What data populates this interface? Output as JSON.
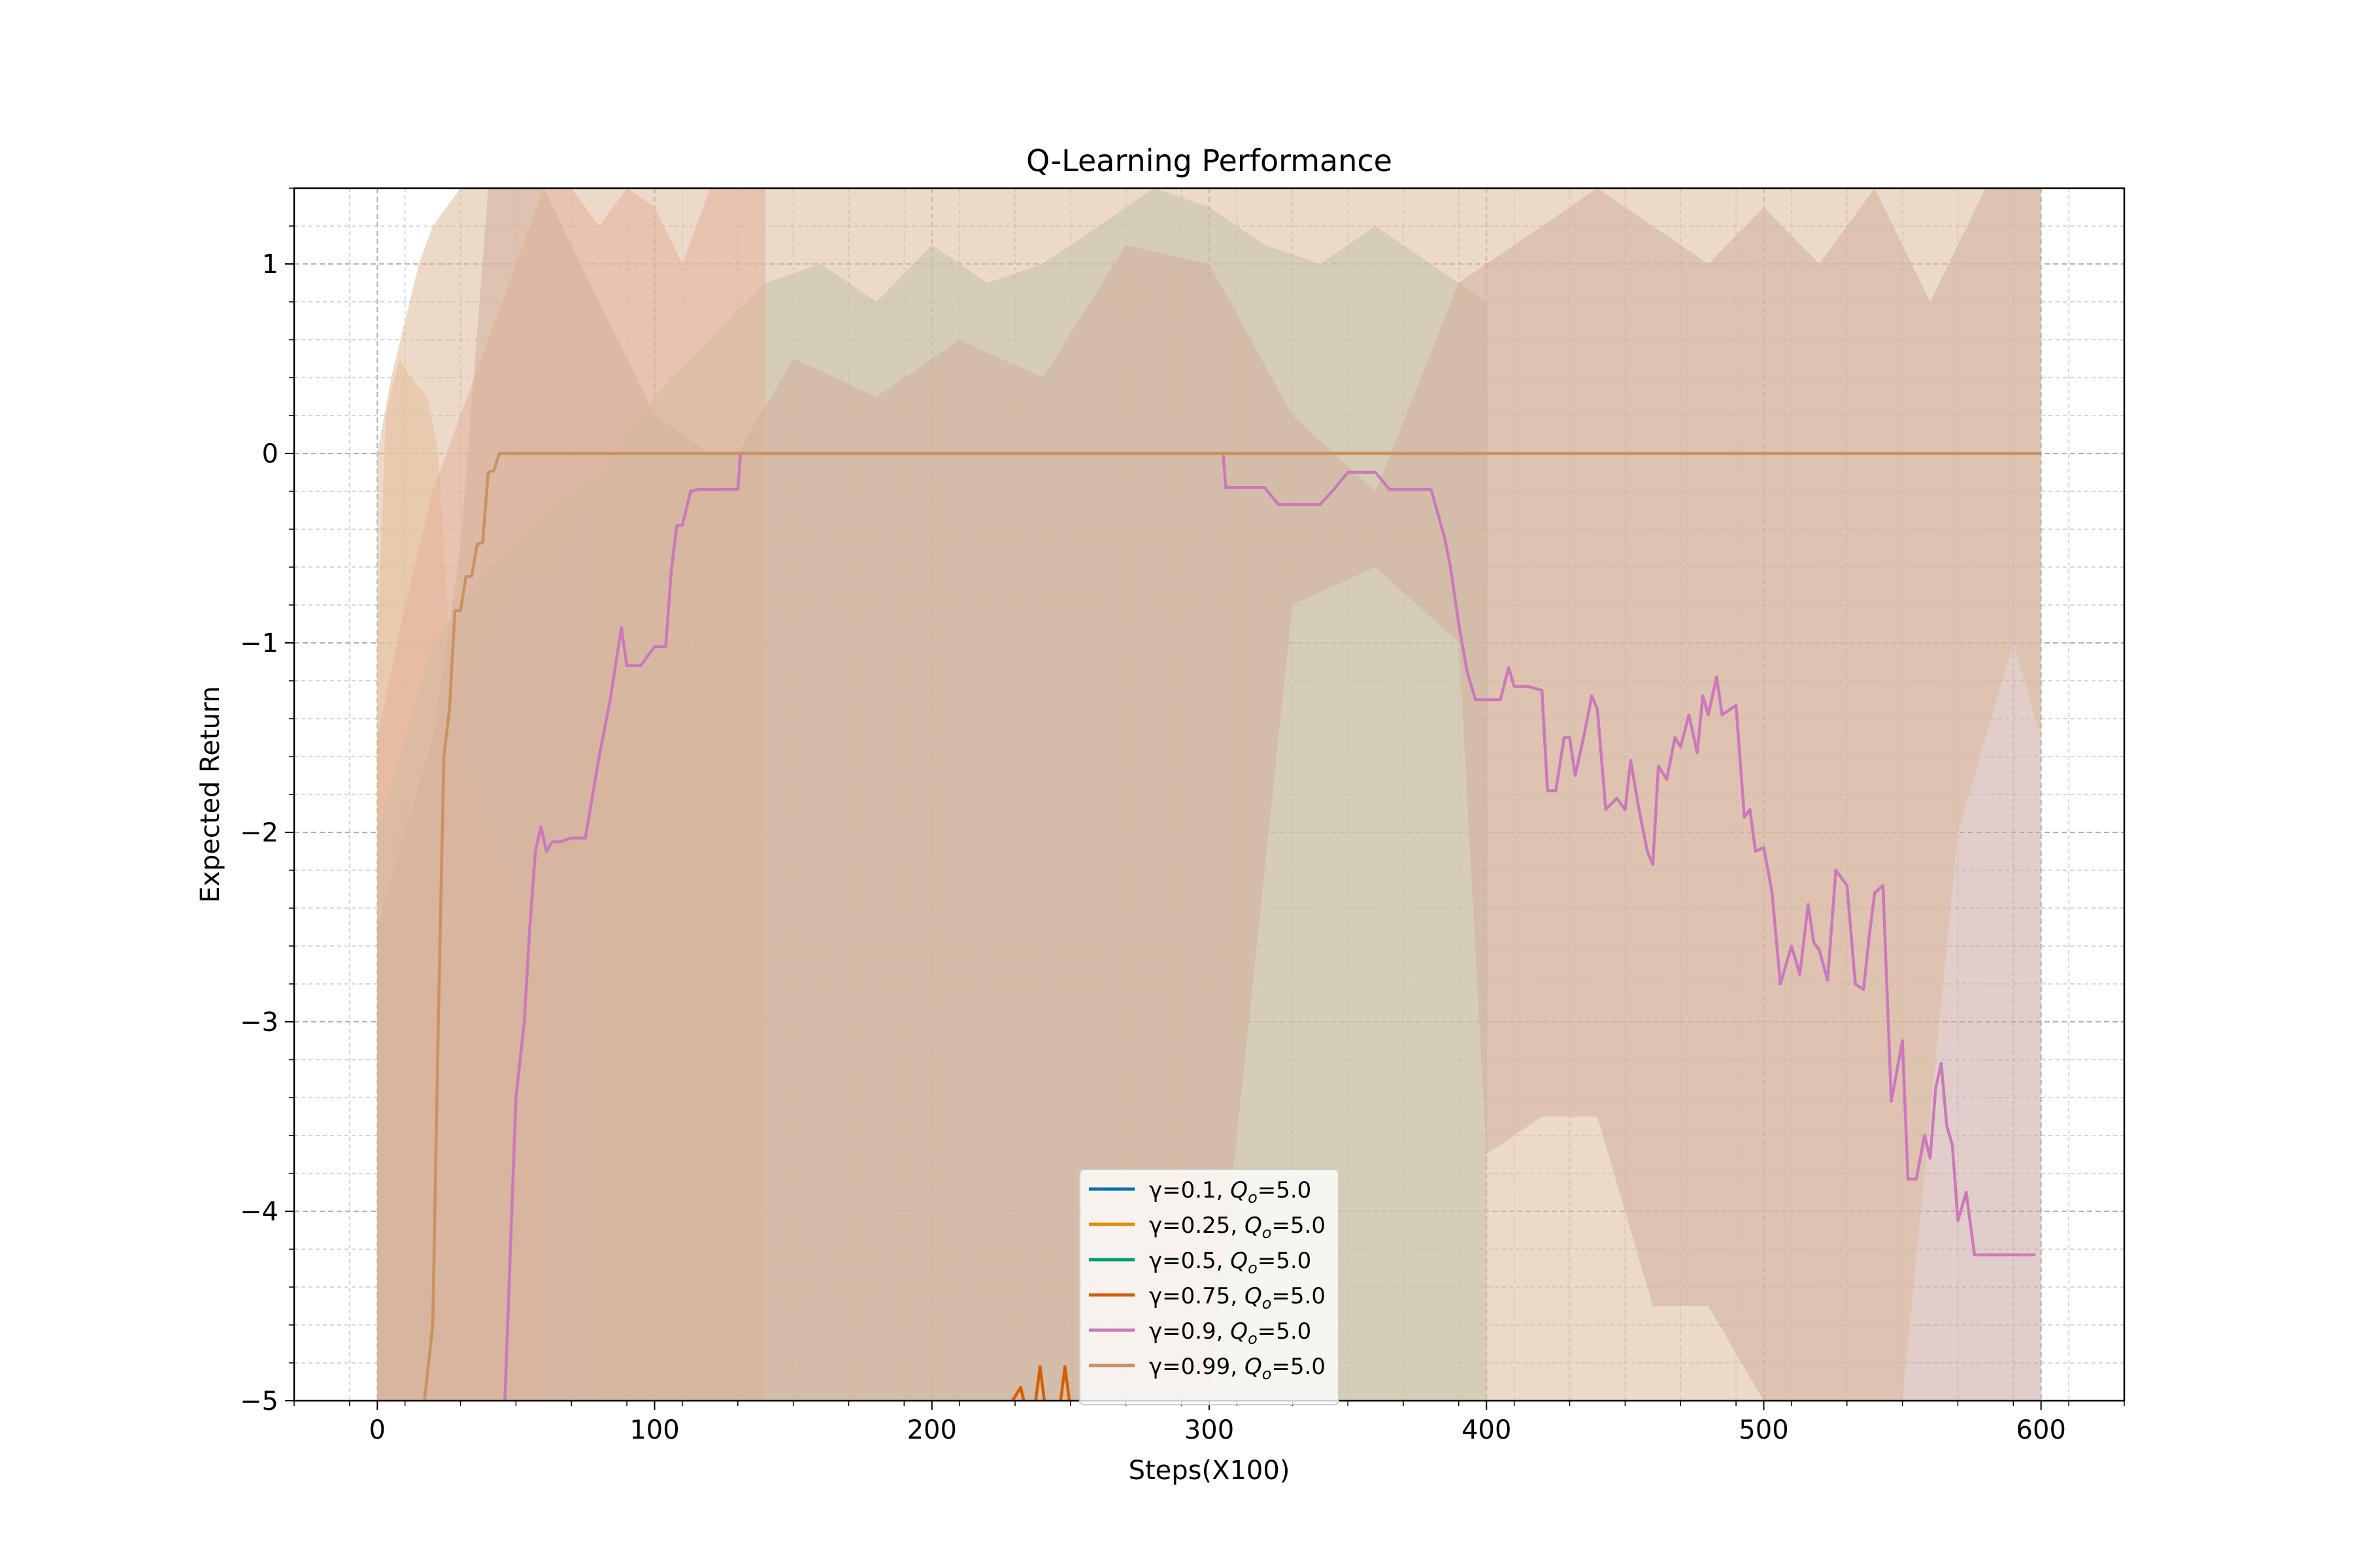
{
  "chart_data": {
    "type": "line",
    "title": "Q-Learning Performance",
    "xlabel": "Steps(X100)",
    "ylabel": "Expected Return",
    "xlim": [
      -30,
      630
    ],
    "ylim": [
      -5,
      1.4
    ],
    "xticks": [
      0,
      100,
      200,
      300,
      400,
      500,
      600
    ],
    "yticks": [
      1,
      0,
      -1,
      -2,
      -3,
      -4,
      -5
    ],
    "xtick_labels": [
      "0",
      "100",
      "200",
      "300",
      "400",
      "500",
      "600"
    ],
    "ytick_labels": [
      "1",
      "0",
      "−1",
      "−2",
      "−3",
      "−4",
      "−5"
    ],
    "grid": true,
    "legend_position": "lower center",
    "series": [
      {
        "name": "γ=0.1",
        "q_label": "=5.0",
        "color": "#0173b2",
        "band_color": "#9fc4de",
        "x": [],
        "y": [],
        "band_x": [
          0,
          10,
          20,
          30,
          40,
          50,
          60,
          70,
          80
        ],
        "band_upper": [
          -2.6,
          -1.8,
          -2.2,
          -1.2,
          -1.0,
          -0.6,
          -0.7,
          -0.4,
          -0.2
        ],
        "band_lower": [
          -5,
          -5,
          -5,
          -5,
          -5,
          -5,
          -5,
          -5,
          -5
        ]
      },
      {
        "name": "γ=0.25",
        "q_label": "=5.0",
        "color": "#de8f05",
        "band_color": "#f0c896",
        "x": [],
        "y": [],
        "band_x": [
          0,
          3,
          8,
          12,
          18,
          22,
          26,
          30,
          40,
          50,
          60
        ],
        "band_upper": [
          -1.0,
          0.2,
          0.5,
          0.4,
          0.3,
          0.0,
          -1.0,
          -1.5,
          -2.0,
          -2.3,
          -2.6
        ],
        "band_lower": [
          -5,
          -5,
          -5,
          -5,
          -5,
          -5,
          -5,
          -5,
          -5,
          -5,
          -5
        ]
      },
      {
        "name": "γ=0.5",
        "q_label": "=5.0",
        "color": "#029e73",
        "band_color": "#a6cfb8",
        "x": [],
        "y": [],
        "band_x": [
          0,
          20,
          40,
          60,
          80,
          100,
          120,
          140,
          160,
          180,
          200,
          220,
          240,
          260,
          280,
          300,
          320,
          340,
          360,
          380,
          400
        ],
        "band_upper": [
          -2.0,
          -1.0,
          -0.6,
          -0.3,
          -0.1,
          0.3,
          0.6,
          0.9,
          1.0,
          0.8,
          1.1,
          0.9,
          1.0,
          1.2,
          1.4,
          1.3,
          1.1,
          1.0,
          1.2,
          1.0,
          0.8
        ],
        "band_lower": [
          -5,
          -5,
          -5,
          -5,
          -5,
          -5,
          -5,
          -5,
          -5,
          -5,
          -5,
          -5,
          -5,
          -5,
          -5,
          -5,
          -5,
          -5,
          -5,
          -5,
          -5
        ]
      },
      {
        "name": "γ=0.75",
        "q_label": "=5.0",
        "color": "#d55e00",
        "band_color": "#eda79a",
        "x": [
          227,
          232,
          234,
          237,
          239,
          241,
          244,
          246,
          248,
          250,
          252
        ],
        "y": [
          -5.05,
          -4.93,
          -5.05,
          -5.05,
          -4.82,
          -5.05,
          -5.05,
          -5.05,
          -4.82,
          -5.05,
          -5.05
        ],
        "band_x": [
          0,
          10,
          20,
          30,
          40,
          50,
          60,
          70,
          80,
          90,
          100,
          110,
          120,
          130,
          140
        ],
        "band_upper": [
          -1.5,
          -0.8,
          -0.2,
          0.2,
          0.6,
          1.0,
          1.4,
          1.4,
          1.2,
          1.4,
          1.3,
          1.0,
          1.4,
          1.4,
          1.4
        ],
        "band_lower": [
          -5,
          -5,
          -5,
          -5,
          -5,
          -5,
          -5,
          -5,
          -5,
          -5,
          -5,
          -5,
          -5,
          -5,
          -5
        ]
      },
      {
        "name": "γ=0.9",
        "q_label": "=5.0",
        "color": "#cc78bc",
        "band_color": "#c9a59f",
        "x": [
          46,
          50,
          53,
          55,
          57,
          59,
          61,
          63,
          66,
          70,
          75,
          80,
          84,
          88,
          90,
          92,
          95,
          100,
          104,
          106,
          108,
          110,
          113,
          116,
          120,
          125,
          130,
          131,
          200,
          300,
          305,
          306,
          310,
          320,
          325,
          340,
          345,
          350,
          360,
          365,
          370,
          380,
          385,
          387,
          390,
          393,
          396,
          400,
          405,
          408,
          410,
          415,
          420,
          422,
          425,
          428,
          430,
          432,
          435,
          438,
          440,
          443,
          447,
          450,
          452,
          455,
          458,
          460,
          462,
          465,
          468,
          470,
          473,
          476,
          478,
          480,
          483,
          485,
          488,
          490,
          493,
          495,
          497,
          500,
          503,
          506,
          510,
          513,
          516,
          518,
          520,
          523,
          526,
          530,
          533,
          536,
          538,
          540,
          543,
          546,
          550,
          552,
          555,
          558,
          560,
          562,
          564,
          566,
          568,
          570,
          573,
          576,
          578,
          580,
          583,
          586,
          588,
          590,
          592,
          594,
          596,
          598
        ],
        "y": [
          -5,
          -3.4,
          -3.0,
          -2.5,
          -2.1,
          -1.97,
          -2.1,
          -2.05,
          -2.05,
          -2.03,
          -2.03,
          -1.6,
          -1.3,
          -0.92,
          -1.12,
          -1.12,
          -1.12,
          -1.02,
          -1.02,
          -0.62,
          -0.38,
          -0.38,
          -0.2,
          -0.19,
          -0.19,
          -0.19,
          -0.19,
          0,
          0,
          0,
          0,
          -0.18,
          -0.18,
          -0.18,
          -0.27,
          -0.27,
          -0.19,
          -0.1,
          -0.1,
          -0.19,
          -0.19,
          -0.19,
          -0.45,
          -0.6,
          -0.9,
          -1.15,
          -1.3,
          -1.3,
          -1.3,
          -1.13,
          -1.23,
          -1.23,
          -1.25,
          -1.78,
          -1.78,
          -1.5,
          -1.5,
          -1.7,
          -1.5,
          -1.28,
          -1.35,
          -1.88,
          -1.82,
          -1.88,
          -1.62,
          -1.88,
          -2.1,
          -2.17,
          -1.65,
          -1.72,
          -1.5,
          -1.55,
          -1.38,
          -1.58,
          -1.28,
          -1.38,
          -1.18,
          -1.38,
          -1.35,
          -1.33,
          -1.92,
          -1.88,
          -2.1,
          -2.08,
          -2.32,
          -2.8,
          -2.6,
          -2.75,
          -2.38,
          -2.58,
          -2.62,
          -2.78,
          -2.2,
          -2.28,
          -2.8,
          -2.83,
          -2.55,
          -2.32,
          -2.28,
          -3.42,
          -3.1,
          -3.83,
          -3.83,
          -3.6,
          -3.72,
          -3.35,
          -3.22,
          -3.55,
          -3.65,
          -4.05,
          -3.9,
          -4.23,
          -4.23,
          -4.23,
          -4.23,
          -4.23,
          -4.23,
          -4.23,
          -4.23,
          -4.23,
          -4.23,
          -4.23
        ],
        "band_x": [
          0,
          20,
          30,
          40,
          60,
          80,
          100,
          120,
          130,
          150,
          180,
          210,
          240,
          270,
          300,
          330,
          360,
          390,
          400,
          420,
          440,
          460,
          480,
          500,
          520,
          540,
          560,
          580,
          600
        ],
        "band_upper": [
          -2.5,
          -1.5,
          -0.5,
          1.4,
          1.4,
          0.8,
          0.2,
          0.0,
          0.0,
          0.5,
          0.3,
          0.6,
          0.4,
          1.1,
          1.0,
          0.2,
          -0.2,
          0.9,
          1.0,
          1.2,
          1.4,
          1.2,
          1.0,
          1.3,
          1.0,
          1.4,
          0.8,
          1.4,
          1.4
        ],
        "band_lower": [
          -5,
          -5,
          -5,
          -5,
          -5,
          -5,
          -5,
          -5,
          -5,
          -5,
          -5,
          -5,
          -5,
          -5,
          -5,
          -0.8,
          -0.6,
          -1.0,
          -3.7,
          -3.5,
          -3.5,
          -4.5,
          -4.5,
          -5,
          -5,
          -5,
          -5,
          -5,
          -5
        ]
      },
      {
        "name": "γ=0.99",
        "q_label": "=5.0",
        "color": "#ca9161",
        "band_color": "#dcb99b",
        "x": [
          17,
          20,
          22,
          24,
          26,
          28,
          30,
          32,
          34,
          36,
          38,
          40,
          42,
          44,
          600
        ],
        "y": [
          -5,
          -4.6,
          -3.0,
          -1.6,
          -1.35,
          -0.83,
          -0.83,
          -0.65,
          -0.65,
          -0.48,
          -0.47,
          -0.1,
          -0.09,
          0,
          0
        ],
        "band_x": [
          0,
          5,
          10,
          15,
          20,
          30,
          40,
          60,
          80,
          100,
          120,
          150,
          200,
          250,
          300,
          350,
          400,
          450,
          500,
          530,
          550,
          570,
          590,
          600
        ],
        "band_upper": [
          0.0,
          0.4,
          0.7,
          1.0,
          1.2,
          1.4,
          1.4,
          1.4,
          1.4,
          1.4,
          1.4,
          1.4,
          1.4,
          1.4,
          1.4,
          1.4,
          1.4,
          1.4,
          1.4,
          1.4,
          1.4,
          1.4,
          1.4,
          1.4
        ],
        "band_lower": [
          -5,
          -5,
          -5,
          -5,
          -5,
          -5,
          -5,
          -5,
          -5,
          -5,
          -5,
          -5,
          -5,
          -5,
          -5,
          -5,
          -5,
          -5,
          -5,
          -5,
          -5,
          -2.0,
          -1.0,
          -1.5
        ]
      }
    ]
  }
}
